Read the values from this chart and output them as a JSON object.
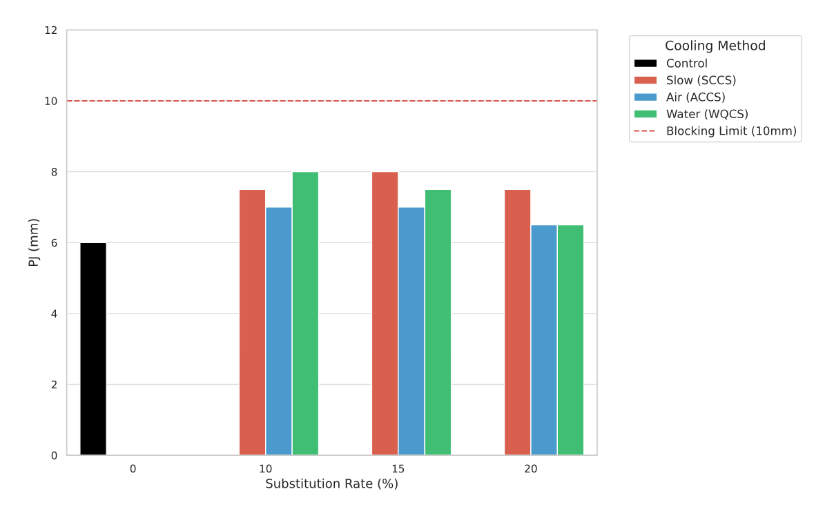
{
  "chart_data": {
    "type": "bar",
    "xlabel": "Substitution Rate (%)",
    "ylabel": "PJ (mm)",
    "legend_title": "Cooling Method",
    "categories": [
      "0",
      "10",
      "15",
      "20"
    ],
    "series": [
      {
        "name": "Control",
        "color": "#000000",
        "values": [
          6,
          null,
          null,
          null
        ]
      },
      {
        "name": "Slow (SCCS)",
        "color": "#d9604f",
        "values": [
          null,
          7.5,
          8,
          7.5
        ]
      },
      {
        "name": "Air (ACCS)",
        "color": "#4a9acd",
        "values": [
          null,
          7,
          7,
          6.5
        ]
      },
      {
        "name": "Water (WQCS)",
        "color": "#40bf74",
        "values": [
          null,
          8,
          7.5,
          6.5
        ]
      }
    ],
    "ylim": [
      0,
      12
    ],
    "yticks": [
      0,
      2,
      4,
      6,
      8,
      10,
      12
    ],
    "ref_lines": [
      {
        "axis": "y",
        "value": 10,
        "label": "Blocking Limit (10mm)",
        "color": "#d9534f",
        "line_style": "dashed"
      }
    ],
    "grid": "y",
    "legend": "top right"
  }
}
